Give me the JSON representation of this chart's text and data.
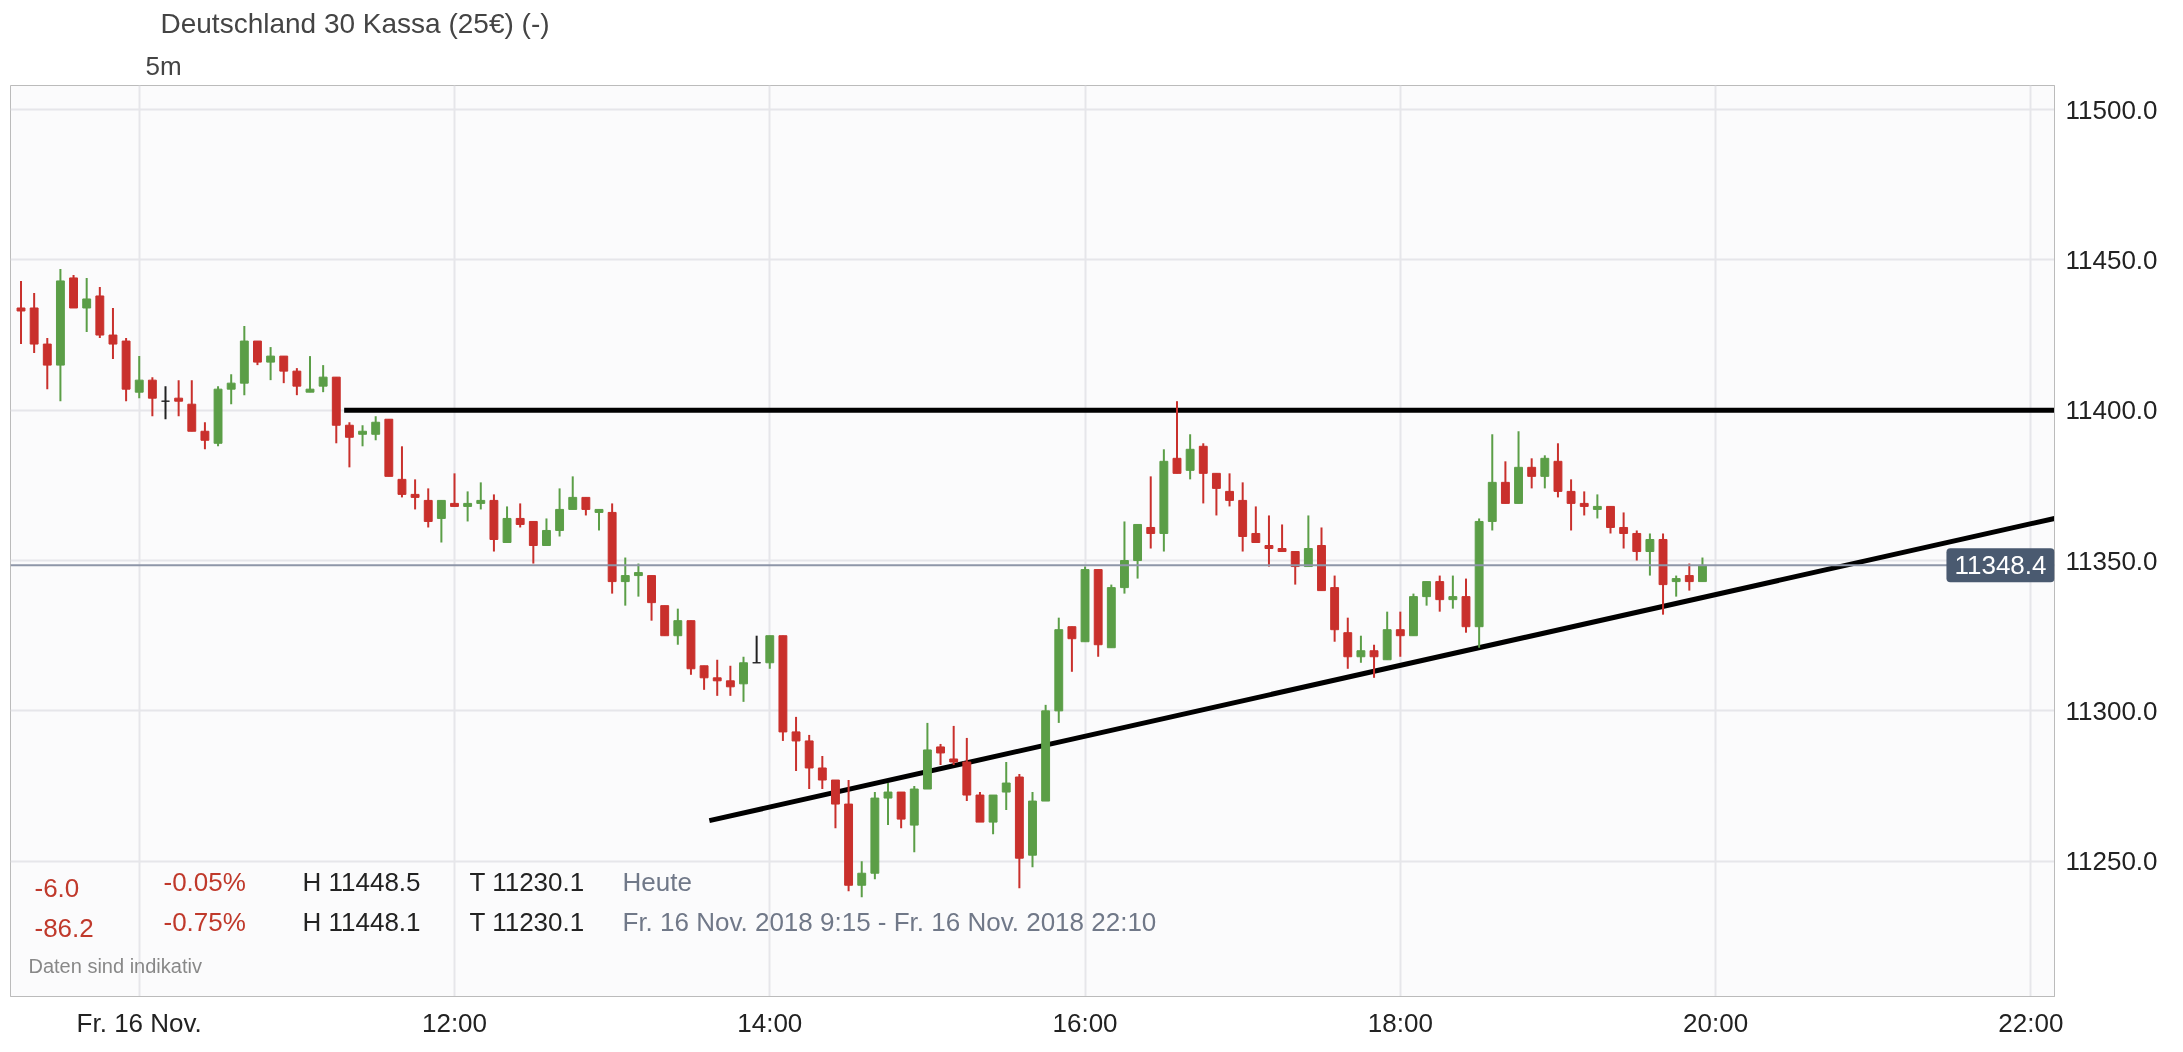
{
  "chart_data": {
    "type": "candlestick",
    "title": "Deutschland 30 Kassa (25€) (-)",
    "subtitle": "5m",
    "x": [
      "2018-11-16T09:15",
      "2018-11-16T09:20",
      "2018-11-16T09:25",
      "2018-11-16T09:30",
      "2018-11-16T09:35",
      "2018-11-16T09:40",
      "2018-11-16T09:45",
      "2018-11-16T09:50",
      "2018-11-16T09:55",
      "2018-11-16T10:00",
      "2018-11-16T10:05",
      "2018-11-16T10:10",
      "2018-11-16T10:15",
      "2018-11-16T10:20",
      "2018-11-16T10:25",
      "2018-11-16T10:30",
      "2018-11-16T10:35",
      "2018-11-16T10:40",
      "2018-11-16T10:45",
      "2018-11-16T10:50",
      "2018-11-16T10:55",
      "2018-11-16T11:00",
      "2018-11-16T11:05",
      "2018-11-16T11:10",
      "2018-11-16T11:15",
      "2018-11-16T11:20",
      "2018-11-16T11:25",
      "2018-11-16T11:30",
      "2018-11-16T11:35",
      "2018-11-16T11:40",
      "2018-11-16T11:45",
      "2018-11-16T11:50",
      "2018-11-16T11:55",
      "2018-11-16T12:00",
      "2018-11-16T12:05",
      "2018-11-16T12:10",
      "2018-11-16T12:15",
      "2018-11-16T12:20",
      "2018-11-16T12:25",
      "2018-11-16T12:30",
      "2018-11-16T12:35",
      "2018-11-16T12:40",
      "2018-11-16T12:45",
      "2018-11-16T12:50",
      "2018-11-16T12:55",
      "2018-11-16T13:00",
      "2018-11-16T13:05",
      "2018-11-16T13:10",
      "2018-11-16T13:15",
      "2018-11-16T13:20",
      "2018-11-16T13:25",
      "2018-11-16T13:30",
      "2018-11-16T13:35",
      "2018-11-16T13:40",
      "2018-11-16T13:45",
      "2018-11-16T13:50",
      "2018-11-16T13:55",
      "2018-11-16T14:00",
      "2018-11-16T14:05",
      "2018-11-16T14:10",
      "2018-11-16T14:15",
      "2018-11-16T14:20",
      "2018-11-16T14:25",
      "2018-11-16T14:30",
      "2018-11-16T14:35",
      "2018-11-16T14:40",
      "2018-11-16T14:45",
      "2018-11-16T14:50",
      "2018-11-16T14:55",
      "2018-11-16T15:00",
      "2018-11-16T15:05",
      "2018-11-16T15:10",
      "2018-11-16T15:15",
      "2018-11-16T15:20",
      "2018-11-16T15:25",
      "2018-11-16T15:30",
      "2018-11-16T15:35",
      "2018-11-16T15:40",
      "2018-11-16T15:45",
      "2018-11-16T15:50",
      "2018-11-16T15:55",
      "2018-11-16T16:00",
      "2018-11-16T16:05",
      "2018-11-16T16:10",
      "2018-11-16T16:15",
      "2018-11-16T16:20",
      "2018-11-16T16:25",
      "2018-11-16T16:30",
      "2018-11-16T16:35",
      "2018-11-16T16:40",
      "2018-11-16T16:45",
      "2018-11-16T16:50",
      "2018-11-16T16:55",
      "2018-11-16T17:00",
      "2018-11-16T17:05",
      "2018-11-16T17:10",
      "2018-11-16T17:15",
      "2018-11-16T17:20",
      "2018-11-16T17:25",
      "2018-11-16T17:30",
      "2018-11-16T17:35",
      "2018-11-16T17:40",
      "2018-11-16T17:45",
      "2018-11-16T17:50",
      "2018-11-16T17:55",
      "2018-11-16T18:00",
      "2018-11-16T18:05",
      "2018-11-16T18:10",
      "2018-11-16T18:15",
      "2018-11-16T18:20",
      "2018-11-16T18:25",
      "2018-11-16T18:30",
      "2018-11-16T18:35",
      "2018-11-16T18:40",
      "2018-11-16T18:45",
      "2018-11-16T18:50",
      "2018-11-16T18:55",
      "2018-11-16T19:00",
      "2018-11-16T19:05",
      "2018-11-16T19:10",
      "2018-11-16T19:15",
      "2018-11-16T19:20",
      "2018-11-16T19:25",
      "2018-11-16T19:30",
      "2018-11-16T19:35",
      "2018-11-16T19:40",
      "2018-11-16T19:45",
      "2018-11-16T19:50",
      "2018-11-16T19:55"
    ],
    "ohlc": [
      [
        11434,
        11443,
        11422,
        11433
      ],
      [
        11434,
        11439,
        11419,
        11422
      ],
      [
        11422,
        11424,
        11407,
        11415
      ],
      [
        11415,
        11447,
        11403,
        11443
      ],
      [
        11444,
        11445,
        11434,
        11434
      ],
      [
        11434,
        11444,
        11426,
        11437
      ],
      [
        11438,
        11441,
        11424,
        11425
      ],
      [
        11425,
        11434,
        11417,
        11422
      ],
      [
        11423,
        11424,
        11403,
        11407
      ],
      [
        11406,
        11418,
        11404,
        11410
      ],
      [
        11410,
        11411,
        11398,
        11404
      ],
      [
        11403,
        11408,
        11397,
        11403
      ],
      [
        11404,
        11410,
        11398,
        11403
      ],
      [
        11402,
        11410,
        11393,
        11393
      ],
      [
        11393,
        11396,
        11387,
        11390
      ],
      [
        11389,
        11408,
        11388,
        11407
      ],
      [
        11407,
        11412,
        11402,
        11409
      ],
      [
        11409,
        11428,
        11405,
        11423
      ],
      [
        11423,
        11423,
        11415,
        11416
      ],
      [
        11416,
        11421,
        11410,
        11418
      ],
      [
        11418,
        11418,
        11409,
        11413
      ],
      [
        11413,
        11414,
        11405,
        11408
      ],
      [
        11406,
        11418,
        11406,
        11407
      ],
      [
        11408,
        11415,
        11406,
        11411
      ],
      [
        11411,
        11411,
        11389,
        11395
      ],
      [
        11395,
        11396,
        11381,
        11391
      ],
      [
        11392,
        11395,
        11388,
        11393
      ],
      [
        11392,
        11398,
        11390,
        11396
      ],
      [
        11397,
        11397,
        11378,
        11378
      ],
      [
        11377,
        11388,
        11371,
        11372
      ],
      [
        11372,
        11377,
        11367,
        11371
      ],
      [
        11370,
        11374,
        11361,
        11363
      ],
      [
        11364,
        11370,
        11356,
        11370
      ],
      [
        11369,
        11379,
        11368,
        11368
      ],
      [
        11368,
        11373,
        11363,
        11369
      ],
      [
        11369,
        11376,
        11367,
        11370
      ],
      [
        11370,
        11372,
        11353,
        11357
      ],
      [
        11356,
        11368,
        11356,
        11364
      ],
      [
        11364,
        11369,
        11361,
        11362
      ],
      [
        11363,
        11363,
        11349,
        11355
      ],
      [
        11355,
        11364,
        11355,
        11360
      ],
      [
        11360,
        11374,
        11358,
        11367
      ],
      [
        11367,
        11378,
        11367,
        11371
      ],
      [
        11371,
        11371,
        11365,
        11367
      ],
      [
        11366,
        11367,
        11360,
        11367
      ],
      [
        11366,
        11369,
        11339,
        11343
      ],
      [
        11343,
        11351,
        11335,
        11345
      ],
      [
        11345,
        11349,
        11338,
        11346
      ],
      [
        11345,
        11345,
        11330,
        11336
      ],
      [
        11335,
        11335,
        11325,
        11325
      ],
      [
        11325,
        11334,
        11322,
        11330
      ],
      [
        11330,
        11330,
        11312,
        11314
      ],
      [
        11315,
        11315,
        11307,
        11311
      ],
      [
        11311,
        11317,
        11305,
        11310
      ],
      [
        11310,
        11315,
        11305,
        11308
      ],
      [
        11309,
        11318,
        11303,
        11316
      ],
      [
        11316,
        11325,
        11316,
        11316
      ],
      [
        11316,
        11325,
        11314,
        11325
      ],
      [
        11325,
        11325,
        11290,
        11293
      ],
      [
        11293,
        11298,
        11280,
        11290
      ],
      [
        11290,
        11292,
        11274,
        11281
      ],
      [
        11281,
        11285,
        11274,
        11277
      ],
      [
        11277,
        11277,
        11261,
        11269
      ],
      [
        11269,
        11277,
        11240,
        11242
      ],
      [
        11242,
        11250,
        11238,
        11246
      ],
      [
        11246,
        11273,
        11244,
        11271
      ],
      [
        11271,
        11276,
        11262,
        11273
      ],
      [
        11273,
        11273,
        11261,
        11264
      ],
      [
        11262,
        11275,
        11253,
        11274
      ],
      [
        11274,
        11296,
        11274,
        11287
      ],
      [
        11288,
        11289,
        11282,
        11286
      ],
      [
        11284,
        11295,
        11282,
        11283
      ],
      [
        11283,
        11291,
        11270,
        11272
      ],
      [
        11272,
        11273,
        11263,
        11263
      ],
      [
        11263,
        11272,
        11259,
        11272
      ],
      [
        11273,
        11283,
        11267,
        11276
      ],
      [
        11278,
        11279,
        11241,
        11251
      ],
      [
        11252,
        11273,
        11248,
        11270
      ],
      [
        11270,
        11302,
        11270,
        11300
      ],
      [
        11300,
        11331,
        11296,
        11327
      ],
      [
        11328,
        11328,
        11313,
        11324
      ],
      [
        11323,
        11348,
        11323,
        11347
      ],
      [
        11347,
        11347,
        11318,
        11322
      ],
      [
        11321,
        11342,
        11321,
        11341
      ],
      [
        11341,
        11363,
        11339,
        11350
      ],
      [
        11350,
        11362,
        11344,
        11362
      ],
      [
        11361,
        11378,
        11354,
        11359
      ],
      [
        11359,
        11387,
        11353,
        11383
      ],
      [
        11384,
        11403,
        11379,
        11379
      ],
      [
        11380,
        11392,
        11377,
        11387
      ],
      [
        11388,
        11389,
        11369,
        11379
      ],
      [
        11379,
        11379,
        11365,
        11374
      ],
      [
        11373,
        11379,
        11368,
        11370
      ],
      [
        11370,
        11376,
        11353,
        11358
      ],
      [
        11359,
        11368,
        11356,
        11356
      ],
      [
        11355,
        11365,
        11348,
        11354
      ],
      [
        11354,
        11362,
        11353,
        11353
      ],
      [
        11353,
        11353,
        11342,
        11348
      ],
      [
        11348,
        11365,
        11348,
        11354
      ],
      [
        11355,
        11361,
        11340,
        11340
      ],
      [
        11341,
        11345,
        11323,
        11327
      ],
      [
        11326,
        11331,
        11314,
        11318
      ],
      [
        11318,
        11325,
        11316,
        11320
      ],
      [
        11320,
        11322,
        11311,
        11318
      ],
      [
        11317,
        11333,
        11317,
        11327
      ],
      [
        11327,
        11333,
        11318,
        11325
      ],
      [
        11325,
        11339,
        11325,
        11338
      ],
      [
        11338,
        11343,
        11335,
        11343
      ],
      [
        11343,
        11345,
        11333,
        11337
      ],
      [
        11337,
        11345,
        11334,
        11338
      ],
      [
        11338,
        11344,
        11326,
        11328
      ],
      [
        11328,
        11364,
        11321,
        11363
      ],
      [
        11363,
        11392,
        11360,
        11376
      ],
      [
        11376,
        11383,
        11369,
        11369
      ],
      [
        11369,
        11393,
        11369,
        11381
      ],
      [
        11381,
        11384,
        11374,
        11378
      ],
      [
        11378,
        11385,
        11374,
        11384
      ],
      [
        11383,
        11389,
        11371,
        11373
      ],
      [
        11373,
        11377,
        11360,
        11369
      ],
      [
        11369,
        11373,
        11365,
        11368
      ],
      [
        11367,
        11372,
        11364,
        11368
      ],
      [
        11368,
        11368,
        11359,
        11361
      ],
      [
        11361,
        11366,
        11354,
        11359
      ],
      [
        11359,
        11360,
        11350,
        11353
      ],
      [
        11353,
        11359,
        11345,
        11357
      ],
      [
        11357,
        11359,
        11332,
        11342
      ],
      [
        11343,
        11345,
        11338,
        11344
      ],
      [
        11345,
        11349,
        11340,
        11343
      ],
      [
        11343,
        11351,
        11343,
        11348.4
      ]
    ],
    "series": [
      {
        "type": "line",
        "color": "#000000",
        "x": [
          "2018-11-16T11:18",
          "2018-11-16T22:09"
        ],
        "values": [
          11400,
          11400
        ]
      },
      {
        "type": "line",
        "color": "#000000",
        "x": [
          "2018-11-16T13:37",
          "2018-11-16T22:09"
        ],
        "values": [
          11263.5,
          11364
        ]
      }
    ],
    "ref_lines": [
      {
        "axis": "y",
        "value": 11348.4,
        "label": "11348.4",
        "color": "#8e96a8"
      }
    ],
    "xlim": [
      "2018-11-16T09:11",
      "2018-11-16T22:09"
    ],
    "xticks": [
      {
        "value": "2018-11-16T10:00",
        "label": "Fr. 16 Nov."
      },
      {
        "value": "2018-11-16T12:00",
        "label": "12:00"
      },
      {
        "value": "2018-11-16T14:00",
        "label": "14:00"
      },
      {
        "value": "2018-11-16T16:00",
        "label": "16:00"
      },
      {
        "value": "2018-11-16T18:00",
        "label": "18:00"
      },
      {
        "value": "2018-11-16T20:00",
        "label": "20:00"
      },
      {
        "value": "2018-11-16T22:00",
        "label": "22:00"
      }
    ],
    "ylim": [
      11205,
      11508
    ],
    "yticks": [
      {
        "value": 11250,
        "label": "11250.0"
      },
      {
        "value": 11300,
        "label": "11300.0"
      },
      {
        "value": 11350,
        "label": "11350.0"
      },
      {
        "value": 11400,
        "label": "11400.0"
      },
      {
        "value": 11450,
        "label": "11450.0"
      },
      {
        "value": 11500,
        "label": "11500.0"
      }
    ],
    "grid": true,
    "annotations": [
      "-6.0",
      "-0.05%",
      "H 11448.5",
      "T 11230.1",
      "Heute",
      "-86.2",
      "-0.75%",
      "H 11448.1",
      "T 11230.1",
      "Fr. 16 Nov. 2018 9:15 - Fr. 16 Nov. 2018 22:10",
      "Daten sind indikativ"
    ]
  }
}
